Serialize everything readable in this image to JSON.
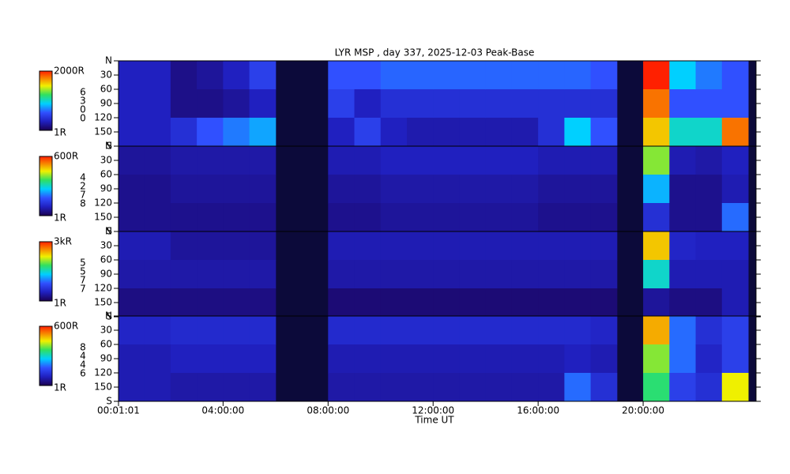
{
  "chart_data": {
    "type": "heatmap",
    "title": "LYR MSP , day 337, 2025-12-03 Peak-Base",
    "xlabel": "Time UT",
    "xlim": [
      0.0169,
      24.3
    ],
    "xticks": [
      {
        "value": 0.0169,
        "label": "00:01:01"
      },
      {
        "value": 4,
        "label": "04:00:00"
      },
      {
        "value": 8,
        "label": "08:00:00"
      },
      {
        "value": 12,
        "label": "12:00:00"
      },
      {
        "value": 16,
        "label": "16:00:00"
      },
      {
        "value": 20,
        "label": "20:00:00"
      }
    ],
    "ylim": [
      0,
      180
    ],
    "yticks": [
      {
        "value": 0,
        "label": "N"
      },
      30,
      60,
      90,
      120,
      150,
      {
        "value": 180,
        "label": "S"
      }
    ],
    "panels": [
      {
        "cbar_max": {
          "value": 2000,
          "label": "2000R"
        },
        "cbar_min": {
          "value": 1,
          "label": "1R"
        },
        "wavelength_digits": [
          "6",
          "3",
          "0",
          "0"
        ],
        "x": [
          0,
          1,
          2,
          3,
          4,
          5,
          6,
          7,
          8,
          9,
          10,
          11,
          12,
          13,
          14,
          15,
          16,
          17,
          18,
          19,
          20,
          21,
          22,
          23
        ],
        "values": [
          [
            300,
            300,
            300
          ],
          [
            300,
            300,
            300
          ],
          [
            150,
            150,
            400
          ],
          [
            200,
            150,
            600
          ],
          [
            300,
            200,
            700
          ],
          [
            500,
            300,
            800
          ],
          null,
          null,
          [
            600,
            500,
            300
          ],
          [
            600,
            300,
            500
          ],
          [
            650,
            400,
            300
          ],
          [
            650,
            400,
            250
          ],
          [
            650,
            400,
            250
          ],
          [
            650,
            400,
            250
          ],
          [
            650,
            400,
            250
          ],
          [
            650,
            400,
            250
          ],
          [
            650,
            400,
            400
          ],
          [
            650,
            400,
            900
          ],
          [
            600,
            400,
            600
          ],
          null,
          [
            2000,
            1800,
            1600
          ],
          [
            900,
            600,
            1000
          ],
          [
            700,
            600,
            1000
          ],
          [
            600,
            600,
            1800
          ]
        ]
      },
      {
        "cbar_max": {
          "value": 600,
          "label": "600R"
        },
        "cbar_min": {
          "value": 1,
          "label": "1R"
        },
        "wavelength_digits": [
          "4",
          "2",
          "7",
          "8"
        ],
        "x": [
          0,
          1,
          2,
          3,
          4,
          5,
          6,
          7,
          8,
          9,
          10,
          11,
          12,
          13,
          14,
          15,
          16,
          17,
          18,
          19,
          20,
          21,
          22,
          23
        ],
        "values": [
          [
            60,
            50,
            50
          ],
          [
            60,
            50,
            50
          ],
          [
            70,
            60,
            50
          ],
          [
            70,
            60,
            50
          ],
          [
            70,
            60,
            50
          ],
          [
            70,
            60,
            50
          ],
          null,
          null,
          [
            80,
            60,
            50
          ],
          [
            80,
            60,
            50
          ],
          [
            90,
            70,
            60
          ],
          [
            90,
            70,
            60
          ],
          [
            90,
            70,
            60
          ],
          [
            90,
            70,
            60
          ],
          [
            90,
            70,
            60
          ],
          [
            90,
            70,
            60
          ],
          [
            80,
            60,
            50
          ],
          [
            80,
            60,
            50
          ],
          [
            80,
            60,
            50
          ],
          null,
          [
            400,
            250,
            120
          ],
          [
            80,
            50,
            50
          ],
          [
            70,
            50,
            50
          ],
          [
            90,
            80,
            200
          ]
        ]
      },
      {
        "cbar_max": {
          "value": 3000,
          "label": "3kR"
        },
        "cbar_min": {
          "value": 1,
          "label": "1R"
        },
        "wavelength_digits": [
          "5",
          "5",
          "7",
          "7"
        ],
        "x": [
          0,
          1,
          2,
          3,
          4,
          5,
          6,
          7,
          8,
          9,
          10,
          11,
          12,
          13,
          14,
          15,
          16,
          17,
          18,
          19,
          20,
          21,
          22,
          23
        ],
        "values": [
          [
            400,
            350,
            200
          ],
          [
            400,
            350,
            200
          ],
          [
            300,
            350,
            200
          ],
          [
            300,
            350,
            200
          ],
          [
            300,
            350,
            200
          ],
          [
            300,
            350,
            200
          ],
          null,
          null,
          [
            400,
            350,
            150
          ],
          [
            400,
            350,
            150
          ],
          [
            400,
            350,
            150
          ],
          [
            400,
            350,
            150
          ],
          [
            400,
            350,
            150
          ],
          [
            400,
            350,
            150
          ],
          [
            400,
            350,
            150
          ],
          [
            400,
            350,
            150
          ],
          [
            400,
            350,
            150
          ],
          [
            400,
            350,
            150
          ],
          [
            400,
            350,
            150
          ],
          null,
          [
            2400,
            1500,
            300
          ],
          [
            500,
            400,
            200
          ],
          [
            450,
            400,
            200
          ],
          [
            450,
            400,
            400
          ]
        ]
      },
      {
        "cbar_max": {
          "value": 600,
          "label": "600R"
        },
        "cbar_min": {
          "value": 1,
          "label": "1R"
        },
        "wavelength_digits": [
          "8",
          "4",
          "4",
          "6"
        ],
        "x": [
          0,
          1,
          2,
          3,
          4,
          5,
          6,
          7,
          8,
          9,
          10,
          11,
          12,
          13,
          14,
          15,
          16,
          17,
          18,
          19,
          20,
          21,
          22,
          23
        ],
        "values": [
          [
            100,
            80,
            80
          ],
          [
            100,
            80,
            80
          ],
          [
            110,
            90,
            70
          ],
          [
            110,
            90,
            70
          ],
          [
            110,
            90,
            70
          ],
          [
            110,
            90,
            70
          ],
          null,
          null,
          [
            110,
            80,
            70
          ],
          [
            110,
            80,
            70
          ],
          [
            110,
            80,
            70
          ],
          [
            110,
            80,
            70
          ],
          [
            110,
            80,
            70
          ],
          [
            110,
            80,
            70
          ],
          [
            110,
            80,
            70
          ],
          [
            110,
            80,
            70
          ],
          [
            110,
            80,
            70
          ],
          [
            110,
            90,
            200
          ],
          [
            100,
            80,
            120
          ],
          null,
          [
            500,
            400,
            350
          ],
          [
            200,
            200,
            150
          ],
          [
            120,
            100,
            120
          ],
          [
            150,
            150,
            450
          ]
        ]
      }
    ]
  }
}
